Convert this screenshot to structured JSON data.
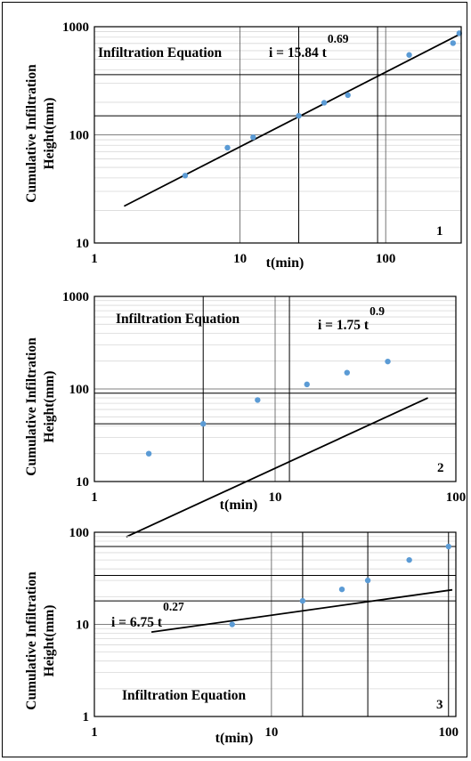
{
  "chart_data": [
    {
      "type": "scatter",
      "scale": "log-log",
      "panel_number": "1",
      "equation_title": "Infiltration Equation",
      "equation": {
        "base": "i = 15.84 t",
        "exponent": "0.69"
      },
      "fit": {
        "a": 15.84,
        "b": 0.69,
        "x_range": [
          1.6,
          320
        ]
      },
      "xlabel": "t(min)",
      "ylabel_lines": [
        "Cumulative Infiltration",
        "Height(mm)"
      ],
      "xlim": [
        1,
        330
      ],
      "ylim": [
        10,
        1000
      ],
      "x_tick_labels": [
        "1",
        "10",
        "100"
      ],
      "x_ticks": [
        1,
        10,
        100
      ],
      "y_tick_labels": [
        "10",
        "100",
        "1000"
      ],
      "y_ticks": [
        10,
        100,
        1000
      ],
      "series": [
        {
          "x": [
            4.2,
            8.2,
            12.3,
            25.3,
            37.8,
            55,
            145,
            290,
            320
          ],
          "y": [
            42,
            76,
            95,
            150,
            198,
            233,
            548,
            705,
            870
          ],
          "color": "#5b9bd5"
        }
      ],
      "reference_lines": {
        "vertical_x": [
          25.3,
          88
        ],
        "horizontal_y": [
          150,
          360
        ]
      },
      "grid": true,
      "grid_lines": {
        "x": [
          10,
          100
        ],
        "y": [
          100
        ]
      }
    },
    {
      "type": "scatter",
      "scale": "log-log",
      "panel_number": "2",
      "equation_title": "Infiltration Equation",
      "equation": {
        "base": "i = 1.75 t",
        "exponent": "0.9"
      },
      "fit": {
        "a": 1.75,
        "b": 0.9,
        "x_range": [
          1.5,
          70
        ]
      },
      "xlabel": "t(min)",
      "ylabel_lines": [
        "Cumulative Infiltration",
        "Height(mm)"
      ],
      "xlim": [
        1,
        100
      ],
      "ylim": [
        10,
        1000
      ],
      "x_tick_labels": [
        "1",
        "10",
        "100"
      ],
      "x_ticks": [
        1,
        10,
        100
      ],
      "y_tick_labels": [
        "10",
        "100",
        "1000"
      ],
      "y_ticks": [
        10,
        100,
        1000
      ],
      "series": [
        {
          "x": [
            2,
            4,
            8,
            15,
            25,
            42
          ],
          "y": [
            20,
            42,
            76,
            112,
            150,
            198
          ],
          "color": "#5b9bd5"
        }
      ],
      "reference_lines": {
        "vertical_x": [
          4,
          12
        ],
        "horizontal_y": [
          42,
          90
        ]
      },
      "grid": true,
      "grid_lines": {
        "x": [
          10
        ],
        "y": [
          100
        ]
      }
    },
    {
      "type": "scatter",
      "scale": "log-log",
      "panel_number": "3",
      "equation_title": "Infiltration Equation",
      "equation": {
        "base": "i = 6.75 t",
        "exponent": "0.27"
      },
      "fit": {
        "a": 6.75,
        "b": 0.27,
        "x_range": [
          2.1,
          105
        ]
      },
      "xlabel": "t(min)",
      "ylabel_lines": [
        "Cumulative Infiltration",
        "Height(mm)"
      ],
      "xlim": [
        1,
        110
      ],
      "ylim": [
        1,
        100
      ],
      "x_tick_labels": [
        "1",
        "10",
        "100"
      ],
      "x_ticks": [
        1,
        10,
        100
      ],
      "y_tick_labels": [
        "1",
        "10",
        "100"
      ],
      "y_ticks": [
        1,
        10,
        100
      ],
      "series": [
        {
          "x": [
            6,
            15,
            25,
            35,
            60,
            100
          ],
          "y": [
            10,
            18,
            24,
            30,
            50,
            70
          ],
          "color": "#5b9bd5"
        }
      ],
      "reference_lines": {
        "vertical_x": [
          15,
          35,
          100
        ],
        "horizontal_y": [
          18,
          34,
          70
        ]
      },
      "grid": true,
      "grid_lines": {
        "x": [
          10
        ],
        "y": [
          10
        ]
      }
    }
  ]
}
